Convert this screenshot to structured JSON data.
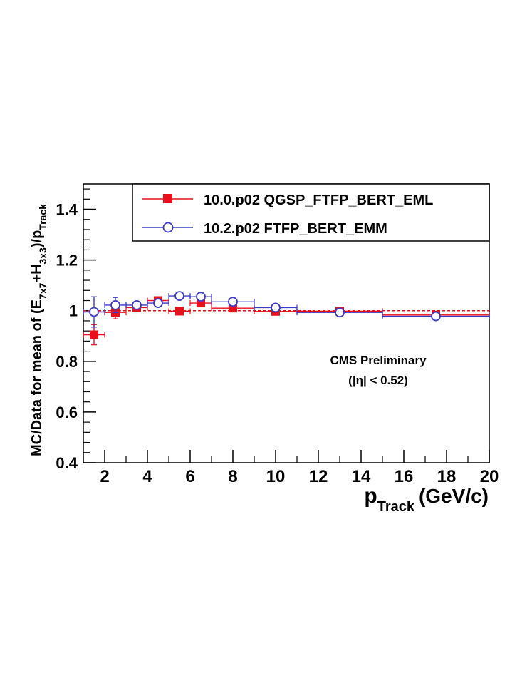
{
  "chart_data": {
    "type": "scatter",
    "title": "",
    "xlabel": {
      "main": "p",
      "sub": "Track",
      "unit": "(GeV/c)"
    },
    "ylabel": {
      "part1": "MC/Data for mean of (E",
      "sub1": "7x7",
      "part2": "+H",
      "sub2": "3x3",
      "part3": ")/p",
      "sub3": "Track"
    },
    "xlim": [
      1,
      20
    ],
    "ylim": [
      0.4,
      1.5
    ],
    "xticks": [
      2,
      4,
      6,
      8,
      10,
      12,
      14,
      16,
      18,
      20
    ],
    "yticks": [
      0.4,
      0.6,
      0.8,
      1,
      1.2,
      1.4
    ],
    "reference_line": 1.0,
    "annotation": {
      "line1": "CMS Preliminary",
      "line2": "(|η| < 0.52)"
    },
    "series": [
      {
        "name": "10.0.p02 QGSP_FTFP_BERT_EML",
        "color": "#e8101a",
        "marker": "filled-square",
        "points": [
          {
            "x": 1.5,
            "xlo": 1,
            "xhi": 2,
            "y": 0.905,
            "yerr": 0.04
          },
          {
            "x": 2.5,
            "xlo": 2,
            "xhi": 3,
            "y": 0.993,
            "yerr": 0.025
          },
          {
            "x": 3.5,
            "xlo": 3,
            "xhi": 4,
            "y": 1.012,
            "yerr": 0.012
          },
          {
            "x": 4.5,
            "xlo": 4,
            "xhi": 5,
            "y": 1.04,
            "yerr": 0.008
          },
          {
            "x": 5.5,
            "xlo": 5,
            "xhi": 6,
            "y": 0.998,
            "yerr": 0.008
          },
          {
            "x": 6.5,
            "xlo": 6,
            "xhi": 7,
            "y": 1.03,
            "yerr": 0.008
          },
          {
            "x": 8,
            "xlo": 7,
            "xhi": 9,
            "y": 1.01,
            "yerr": 0.006
          },
          {
            "x": 10,
            "xlo": 9,
            "xhi": 11,
            "y": 0.997,
            "yerr": 0.005
          },
          {
            "x": 13,
            "xlo": 11,
            "xhi": 15,
            "y": 0.998,
            "yerr": 0.004
          },
          {
            "x": 17.5,
            "xlo": 15,
            "xhi": 20,
            "y": 0.983,
            "yerr": 0.004
          }
        ]
      },
      {
        "name": "10.2.p02 FTFP_BERT_EMM",
        "color": "#3a3ac8",
        "marker": "open-circle",
        "points": [
          {
            "x": 1.5,
            "xlo": 1,
            "xhi": 2,
            "y": 0.995,
            "yerr": 0.06
          },
          {
            "x": 2.5,
            "xlo": 2,
            "xhi": 3,
            "y": 1.022,
            "yerr": 0.03
          },
          {
            "x": 3.5,
            "xlo": 3,
            "xhi": 4,
            "y": 1.022,
            "yerr": 0.015
          },
          {
            "x": 4.5,
            "xlo": 4,
            "xhi": 5,
            "y": 1.03,
            "yerr": 0.01
          },
          {
            "x": 5.5,
            "xlo": 5,
            "xhi": 6,
            "y": 1.058,
            "yerr": 0.008
          },
          {
            "x": 6.5,
            "xlo": 6,
            "xhi": 7,
            "y": 1.055,
            "yerr": 0.008
          },
          {
            "x": 8,
            "xlo": 7,
            "xhi": 9,
            "y": 1.035,
            "yerr": 0.006
          },
          {
            "x": 10,
            "xlo": 9,
            "xhi": 11,
            "y": 1.012,
            "yerr": 0.005
          },
          {
            "x": 13,
            "xlo": 11,
            "xhi": 15,
            "y": 0.993,
            "yerr": 0.004
          },
          {
            "x": 17.5,
            "xlo": 15,
            "xhi": 20,
            "y": 0.978,
            "yerr": 0.004
          }
        ]
      }
    ]
  }
}
